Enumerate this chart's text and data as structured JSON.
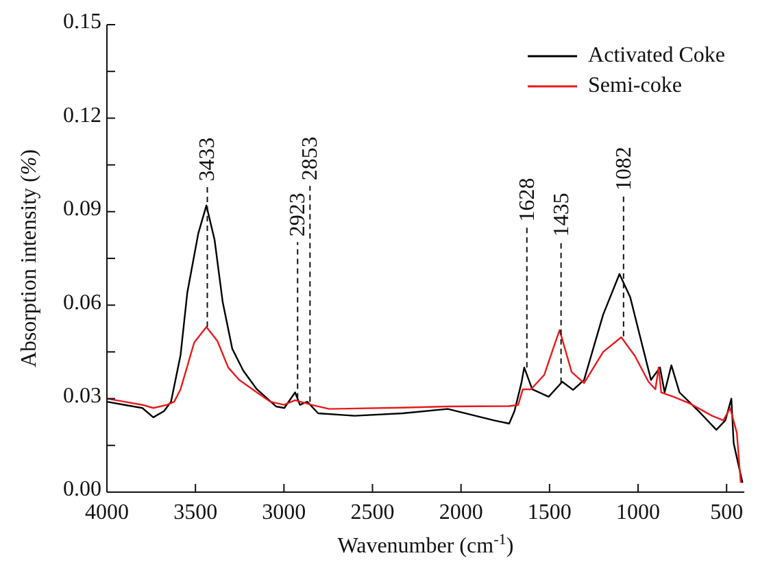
{
  "chart_data": {
    "type": "line",
    "xlabel": "Wavenumber (cm$^{-1}$)",
    "ylabel": "Absorption intensity (%)",
    "xlim": [
      4000,
      400
    ],
    "xticks": [
      4000,
      3500,
      3000,
      2500,
      2000,
      1500,
      1000,
      500
    ],
    "ylim": [
      0,
      0.15
    ],
    "yticks": [
      {
        "value": 0,
        "label": "0.00"
      },
      {
        "value": 0.015,
        "label": null
      },
      {
        "value": 0.03,
        "label": "0.03"
      },
      {
        "value": 0.045,
        "label": null
      },
      {
        "value": 0.06,
        "label": "0.06"
      },
      {
        "value": 0.075,
        "label": null
      },
      {
        "value": 0.09,
        "label": "0.09"
      },
      {
        "value": 0.105,
        "label": null
      },
      {
        "value": 0.12,
        "label": "0.12"
      },
      {
        "value": 0.135,
        "label": null
      },
      {
        "value": 0.15,
        "label": "0.15"
      }
    ],
    "legend": "top right",
    "marker": "none",
    "line_style": "solid",
    "series": [
      {
        "name": "Activated Coke",
        "color": "#000000",
        "x": [
          4000,
          3900,
          3800,
          3738,
          3677,
          3638,
          3584,
          3546,
          3484,
          3438,
          3392,
          3346,
          3292,
          3230,
          3153,
          3045,
          2998,
          2937,
          2910,
          2868,
          2807,
          2600,
          2329,
          2075,
          1813,
          1728,
          1698,
          1659,
          1643,
          1598,
          1505,
          1428,
          1367,
          1305,
          1197,
          1105,
          1044,
          992,
          927,
          876,
          850,
          812,
          766,
          658,
          558,
          507,
          473,
          460,
          430,
          410
        ],
        "values": [
          0.029,
          0.028,
          0.027,
          0.024,
          0.026,
          0.029,
          0.044,
          0.064,
          0.083,
          0.092,
          0.081,
          0.061,
          0.046,
          0.039,
          0.033,
          0.0275,
          0.027,
          0.032,
          0.028,
          0.029,
          0.0253,
          0.0245,
          0.0253,
          0.0267,
          0.023,
          0.022,
          0.026,
          0.035,
          0.04,
          0.033,
          0.0306,
          0.0354,
          0.0328,
          0.036,
          0.057,
          0.07,
          0.0625,
          0.0507,
          0.036,
          0.04,
          0.032,
          0.0407,
          0.032,
          0.026,
          0.02,
          0.023,
          0.03,
          0.0157,
          0.008,
          0.003
        ]
      },
      {
        "name": "Semi-coke",
        "color": "#e8191c",
        "x": [
          4000,
          3900,
          3800,
          3738,
          3660,
          3620,
          3584,
          3507,
          3438,
          3376,
          3315,
          3253,
          3153,
          3076,
          3000,
          2937,
          2845,
          2745,
          2329,
          2075,
          1728,
          1677,
          1651,
          1605,
          1530,
          1480,
          1443,
          1413,
          1375,
          1305,
          1197,
          1095,
          1018,
          941,
          902,
          884,
          869,
          800,
          710,
          582,
          518,
          480,
          442,
          420
        ],
        "values": [
          0.03,
          0.029,
          0.028,
          0.027,
          0.028,
          0.029,
          0.033,
          0.048,
          0.053,
          0.0485,
          0.04,
          0.036,
          0.032,
          0.029,
          0.028,
          0.0295,
          0.028,
          0.0267,
          0.0271,
          0.0275,
          0.0276,
          0.028,
          0.033,
          0.033,
          0.0376,
          0.046,
          0.052,
          0.046,
          0.0385,
          0.035,
          0.045,
          0.0497,
          0.0437,
          0.0354,
          0.033,
          0.04,
          0.032,
          0.0306,
          0.0285,
          0.0245,
          0.023,
          0.027,
          0.019,
          0.003
        ]
      }
    ],
    "annotations": [
      {
        "text": "3433",
        "x": 3433,
        "y": 0.053
      },
      {
        "text": "2923",
        "x": 2923,
        "y": 0.03
      },
      {
        "text": "2853",
        "x": 2853,
        "y": 0.029
      },
      {
        "text": "1628",
        "x": 1628,
        "y": 0.04
      },
      {
        "text": "1435",
        "x": 1435,
        "y": 0.035
      },
      {
        "text": "1082",
        "x": 1082,
        "y": 0.05
      }
    ]
  }
}
